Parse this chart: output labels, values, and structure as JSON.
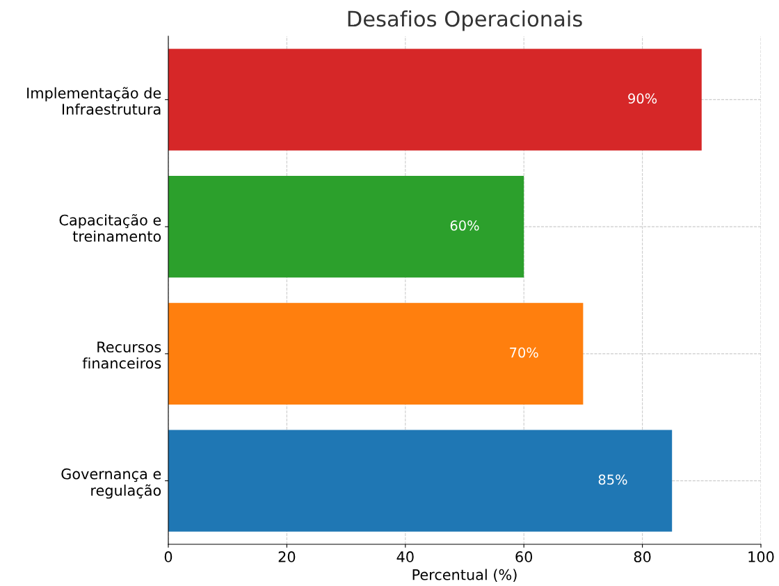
{
  "chart_data": {
    "type": "bar",
    "orientation": "horizontal",
    "title": "Desafios Operacionais",
    "xlabel": "Percentual (%)",
    "categories": [
      "Implementação de\nInfraestrutura",
      "Capacitação e\ntreinamento",
      "Recursos\nfinanceiros",
      "Governança e\nregulação"
    ],
    "values": [
      90,
      60,
      70,
      85
    ],
    "colors": [
      "#d62728",
      "#2ca02c",
      "#ff7f0e",
      "#1f77b4"
    ],
    "value_labels": [
      "90%",
      "60%",
      "70%",
      "85%"
    ],
    "xlim": [
      0,
      100
    ],
    "xticks": [
      0,
      20,
      40,
      60,
      80,
      100
    ],
    "grid": true
  }
}
